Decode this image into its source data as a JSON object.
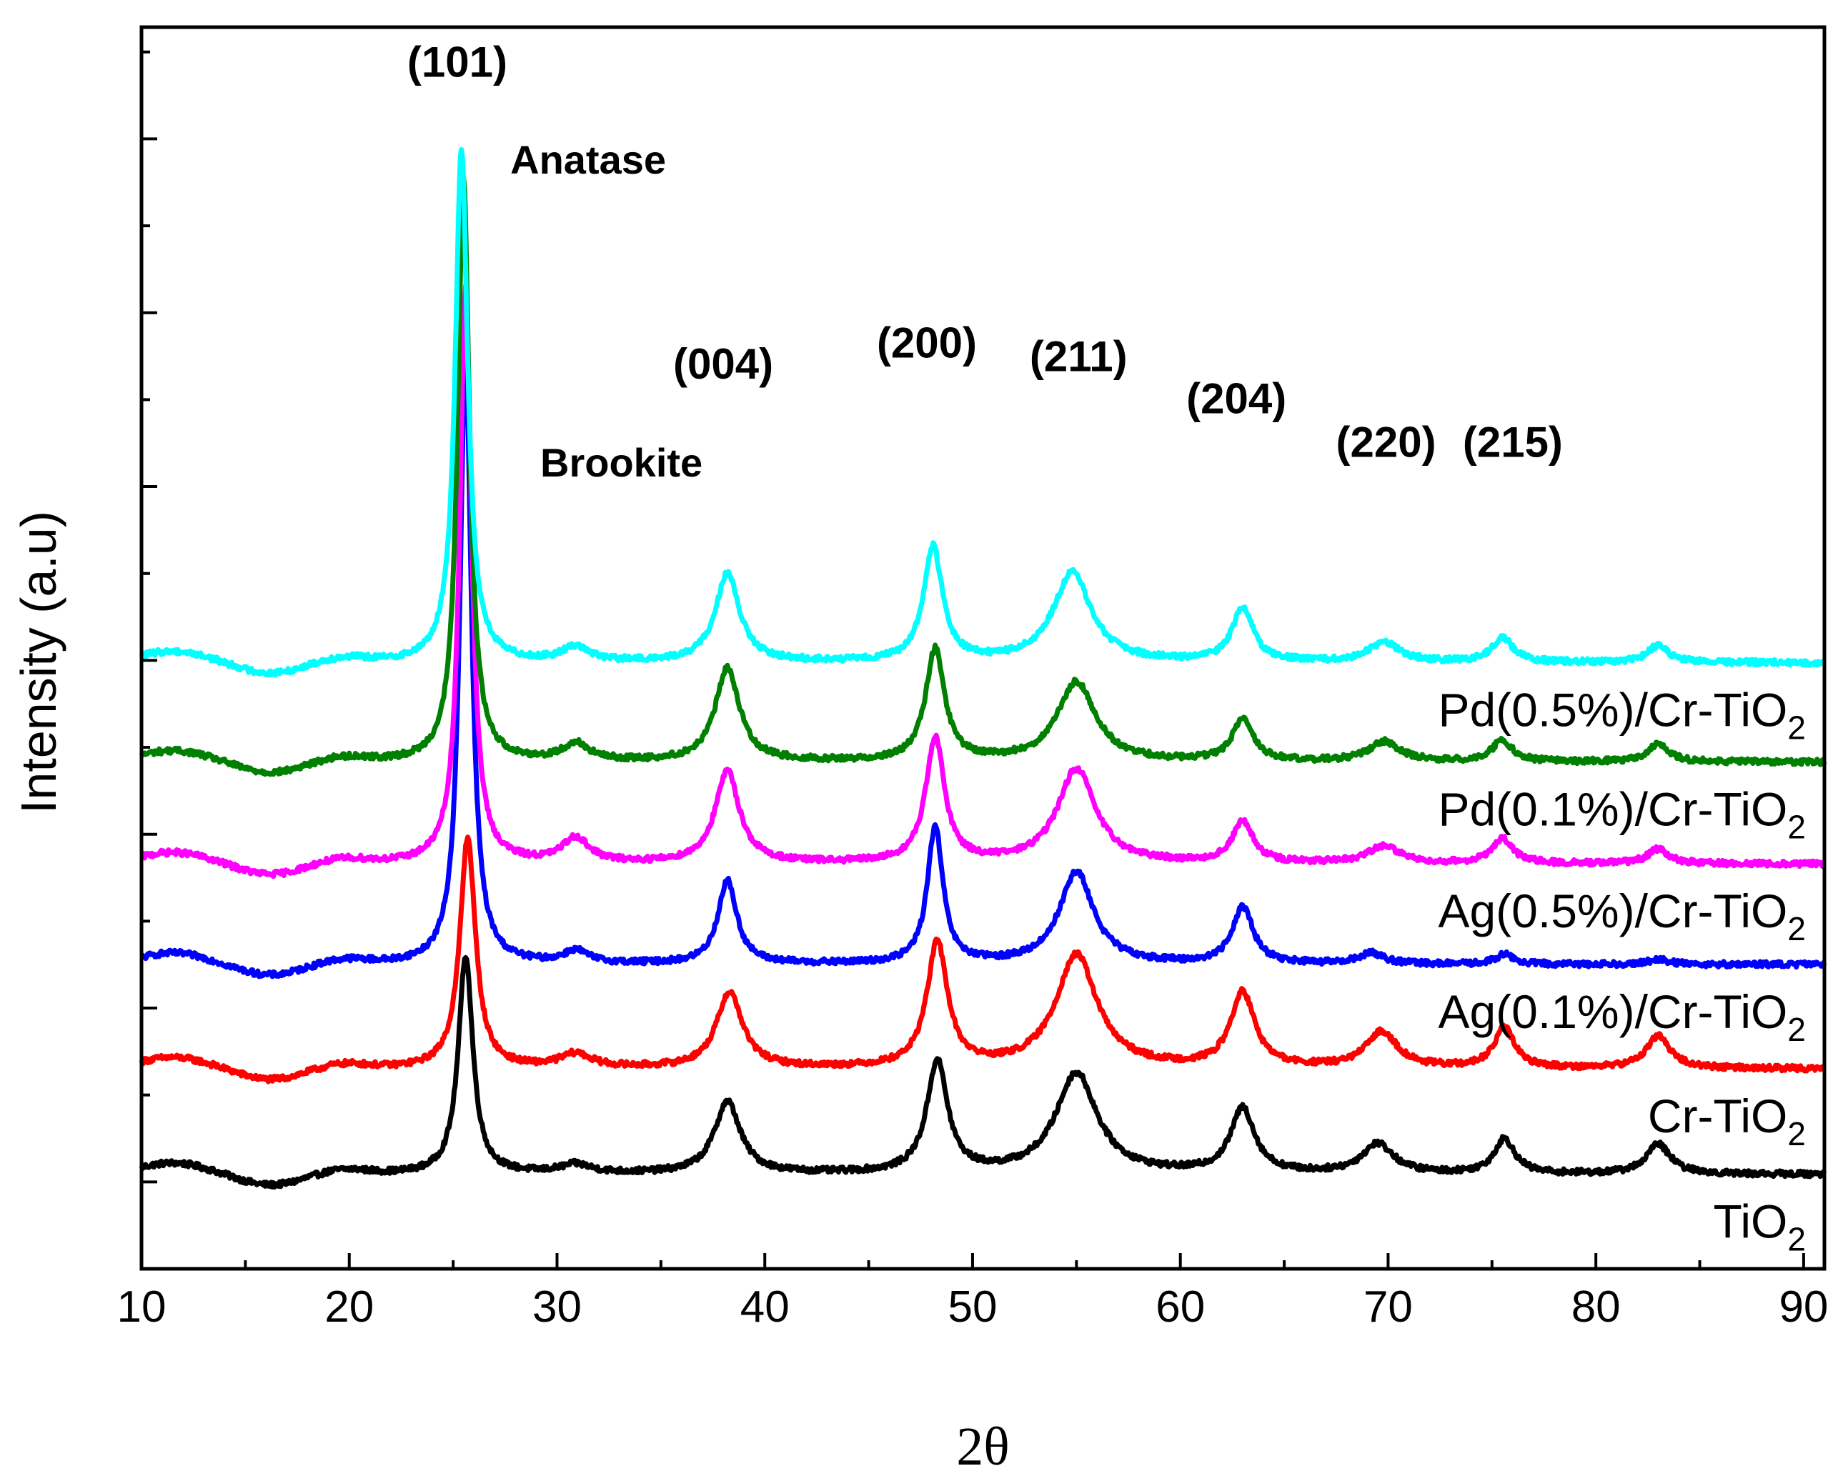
{
  "chart_data": {
    "type": "line",
    "title": "",
    "xlabel": "2θ",
    "ylabel": "Intensity (a.u)",
    "xlim": [
      10,
      91
    ],
    "ylim": [
      0,
      100
    ],
    "x_ticks": [
      10,
      20,
      30,
      40,
      50,
      60,
      70,
      80,
      90
    ],
    "y_ticklabels_shown": false,
    "grid": false,
    "legend": "inline labels to the right of each curve",
    "series": [
      {
        "name": "TiO2",
        "label_main": "TiO",
        "label_sub": "2",
        "label_suffix": "",
        "color": "#000000",
        "baseline": 7.6,
        "peaks": [
          {
            "x": 25.6,
            "height": 17.6,
            "width": 0.42
          },
          {
            "x": 30.9,
            "height": 0.7,
            "width": 0.9
          },
          {
            "x": 38.2,
            "height": 5.8,
            "width": 0.75
          },
          {
            "x": 48.3,
            "height": 9.0,
            "width": 0.6
          },
          {
            "x": 55.0,
            "height": 8.1,
            "width": 1.2
          },
          {
            "x": 63.0,
            "height": 5.2,
            "width": 0.7
          },
          {
            "x": 69.5,
            "height": 2.4,
            "width": 0.9
          },
          {
            "x": 75.6,
            "height": 2.8,
            "width": 0.6
          },
          {
            "x": 83.0,
            "height": 2.4,
            "width": 0.7
          }
        ]
      },
      {
        "name": "Cr-TiO2",
        "label_main": "Cr-TiO",
        "label_sub": "2",
        "label_suffix": "",
        "color": "#ff0000",
        "baseline": 16.1,
        "peaks": [
          {
            "x": 25.7,
            "height": 18.6,
            "width": 0.45
          },
          {
            "x": 30.9,
            "height": 1.1,
            "width": 0.9
          },
          {
            "x": 38.3,
            "height": 6.1,
            "width": 0.75
          },
          {
            "x": 48.3,
            "height": 10.0,
            "width": 0.6
          },
          {
            "x": 55.0,
            "height": 9.1,
            "width": 1.2
          },
          {
            "x": 63.0,
            "height": 6.0,
            "width": 0.7
          },
          {
            "x": 69.7,
            "height": 2.9,
            "width": 0.9
          },
          {
            "x": 75.6,
            "height": 3.2,
            "width": 0.6
          },
          {
            "x": 83.0,
            "height": 2.6,
            "width": 0.7
          }
        ]
      },
      {
        "name": "Ag(0.1%)/Cr-TiO2",
        "label_main": "Ag(0.1%)/Cr-TiO",
        "label_sub": "2",
        "label_suffix": "",
        "color": "#0000ff",
        "baseline": 24.5,
        "peaks": [
          {
            "x": 25.6,
            "height": 49.0,
            "width": 0.34
          },
          {
            "x": 30.9,
            "height": 1.0,
            "width": 0.7
          },
          {
            "x": 38.2,
            "height": 6.7,
            "width": 0.55
          },
          {
            "x": 48.2,
            "height": 11.0,
            "width": 0.45
          },
          {
            "x": 55.0,
            "height": 7.4,
            "width": 1.0
          },
          {
            "x": 63.0,
            "height": 4.6,
            "width": 0.6
          },
          {
            "x": 69.2,
            "height": 0.9,
            "width": 0.7
          },
          {
            "x": 75.6,
            "height": 0.8,
            "width": 0.5
          },
          {
            "x": 83.0,
            "height": 0.4,
            "width": 0.6
          }
        ]
      },
      {
        "name": "Ag(0.5%)/Cr-TiO2",
        "label_main": "Ag(0.5%)/Cr-TiO",
        "label_sub": "2",
        "label_suffix": "",
        "color": "#ff00ff",
        "baseline": 32.6,
        "peaks": [
          {
            "x": 25.6,
            "height": 46.5,
            "width": 0.34
          },
          {
            "x": 30.9,
            "height": 2.0,
            "width": 0.75
          },
          {
            "x": 38.2,
            "height": 7.4,
            "width": 0.7
          },
          {
            "x": 48.2,
            "height": 10.0,
            "width": 0.55
          },
          {
            "x": 55.0,
            "height": 7.6,
            "width": 1.1
          },
          {
            "x": 63.0,
            "height": 3.3,
            "width": 0.6
          },
          {
            "x": 69.8,
            "height": 1.4,
            "width": 0.9
          },
          {
            "x": 75.5,
            "height": 2.0,
            "width": 0.6
          },
          {
            "x": 83.0,
            "height": 1.2,
            "width": 0.6
          }
        ]
      },
      {
        "name": "Pd(0.1%)/Cr-TiO2",
        "label_main": "Pd(0.1%)/Cr-TiO",
        "label_sub": "2",
        "label_suffix": "",
        "color": "#008000",
        "baseline": 40.8,
        "peaks": [
          {
            "x": 25.5,
            "height": 47.0,
            "width": 0.34
          },
          {
            "x": 30.9,
            "height": 1.4,
            "width": 0.75
          },
          {
            "x": 38.2,
            "height": 7.5,
            "width": 0.7
          },
          {
            "x": 48.2,
            "height": 9.0,
            "width": 0.55
          },
          {
            "x": 55.0,
            "height": 6.4,
            "width": 1.1
          },
          {
            "x": 63.0,
            "height": 3.4,
            "width": 0.6
          },
          {
            "x": 69.8,
            "height": 1.6,
            "width": 0.9
          },
          {
            "x": 75.5,
            "height": 1.7,
            "width": 0.6
          },
          {
            "x": 83.0,
            "height": 1.4,
            "width": 0.6
          }
        ]
      },
      {
        "name": "Pd(0.5%)/Cr-TiO2",
        "label_main": "Pd(0.5%)/Cr-TiO",
        "label_sub": "2",
        "label_suffix": "",
        "color": "#00ffff",
        "baseline": 48.8,
        "peaks": [
          {
            "x": 25.4,
            "height": 41.5,
            "width": 0.36
          },
          {
            "x": 30.9,
            "height": 1.2,
            "width": 0.75
          },
          {
            "x": 38.2,
            "height": 7.1,
            "width": 0.7
          },
          {
            "x": 48.1,
            "height": 9.2,
            "width": 0.55
          },
          {
            "x": 54.8,
            "height": 7.2,
            "width": 1.1
          },
          {
            "x": 63.0,
            "height": 4.4,
            "width": 0.6
          },
          {
            "x": 69.8,
            "height": 1.6,
            "width": 0.9
          },
          {
            "x": 75.5,
            "height": 2.0,
            "width": 0.6
          },
          {
            "x": 83.0,
            "height": 1.4,
            "width": 0.6
          }
        ]
      }
    ],
    "annotations": [
      {
        "text": "(101)",
        "x": 25.2,
        "y": 96.0,
        "kind": "peak"
      },
      {
        "text": "Anatase",
        "x": 31.5,
        "y": 88.2,
        "kind": "phase"
      },
      {
        "text": "Brookite",
        "x": 33.1,
        "y": 63.8,
        "kind": "phase"
      },
      {
        "text": "(004)",
        "x": 38.0,
        "y": 71.7,
        "kind": "peak"
      },
      {
        "text": "(200)",
        "x": 47.8,
        "y": 73.4,
        "kind": "peak"
      },
      {
        "text": "(211)",
        "x": 55.1,
        "y": 72.3,
        "kind": "peak"
      },
      {
        "text": "(204)",
        "x": 62.7,
        "y": 68.9,
        "kind": "peak"
      },
      {
        "text": "(220)",
        "x": 69.9,
        "y": 65.4,
        "kind": "peak"
      },
      {
        "text": "(215)",
        "x": 76.0,
        "y": 65.4,
        "kind": "peak"
      }
    ]
  }
}
